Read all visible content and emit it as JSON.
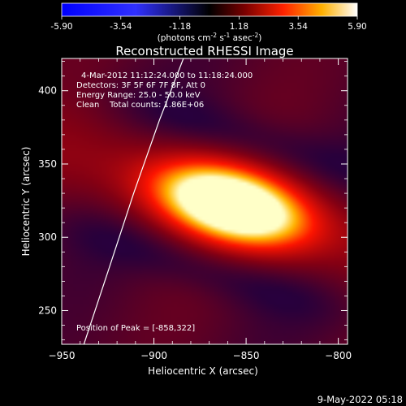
{
  "colorbar": {
    "ticks": [
      "-5.90",
      "-3.54",
      "-1.18",
      "1.18",
      "3.54",
      "5.90"
    ],
    "units_prefix": "(photons cm",
    "units_exp1": "-2",
    "units_mid": " s",
    "units_exp2": "-1",
    "units_end": " asec",
    "units_exp3": "-2",
    "units_close": ")"
  },
  "chart_data": {
    "type": "heatmap",
    "title": "Reconstructed RHESSI Image",
    "xlabel": "Heliocentric X (arcsec)",
    "ylabel": "Heliocentric Y (arcsec)",
    "xlim": [
      -950,
      -795
    ],
    "ylim": [
      227,
      422
    ],
    "xticks": [
      -950,
      -900,
      -850,
      -800
    ],
    "xtick_labels": [
      "−950",
      "−900",
      "−850",
      "−800"
    ],
    "yticks": [
      250,
      300,
      350,
      400
    ],
    "ytick_labels": [
      "250",
      "300",
      "350",
      "400"
    ],
    "value_range": [
      -5.9,
      5.9
    ],
    "peak": [
      -858,
      322
    ],
    "limb_curve": [
      [
        -938,
        227
      ],
      [
        -924,
        280
      ],
      [
        -911,
        330
      ],
      [
        -897,
        380
      ],
      [
        -884,
        422
      ]
    ],
    "annotations": {
      "time_range": "4-Mar-2012 11:12:24.000 to 11:18:24.000",
      "detectors": "Detectors: 3F 5F 6F 7F 8F, Att 0",
      "energy": "Energy Range: 25.0 - 50.0 keV",
      "method": "Clean",
      "counts": "Total counts: 1.86E+06",
      "peak_text": "Position of Peak = [-858,322]"
    }
  },
  "footer": {
    "date": "9-May-2022 05:18"
  }
}
